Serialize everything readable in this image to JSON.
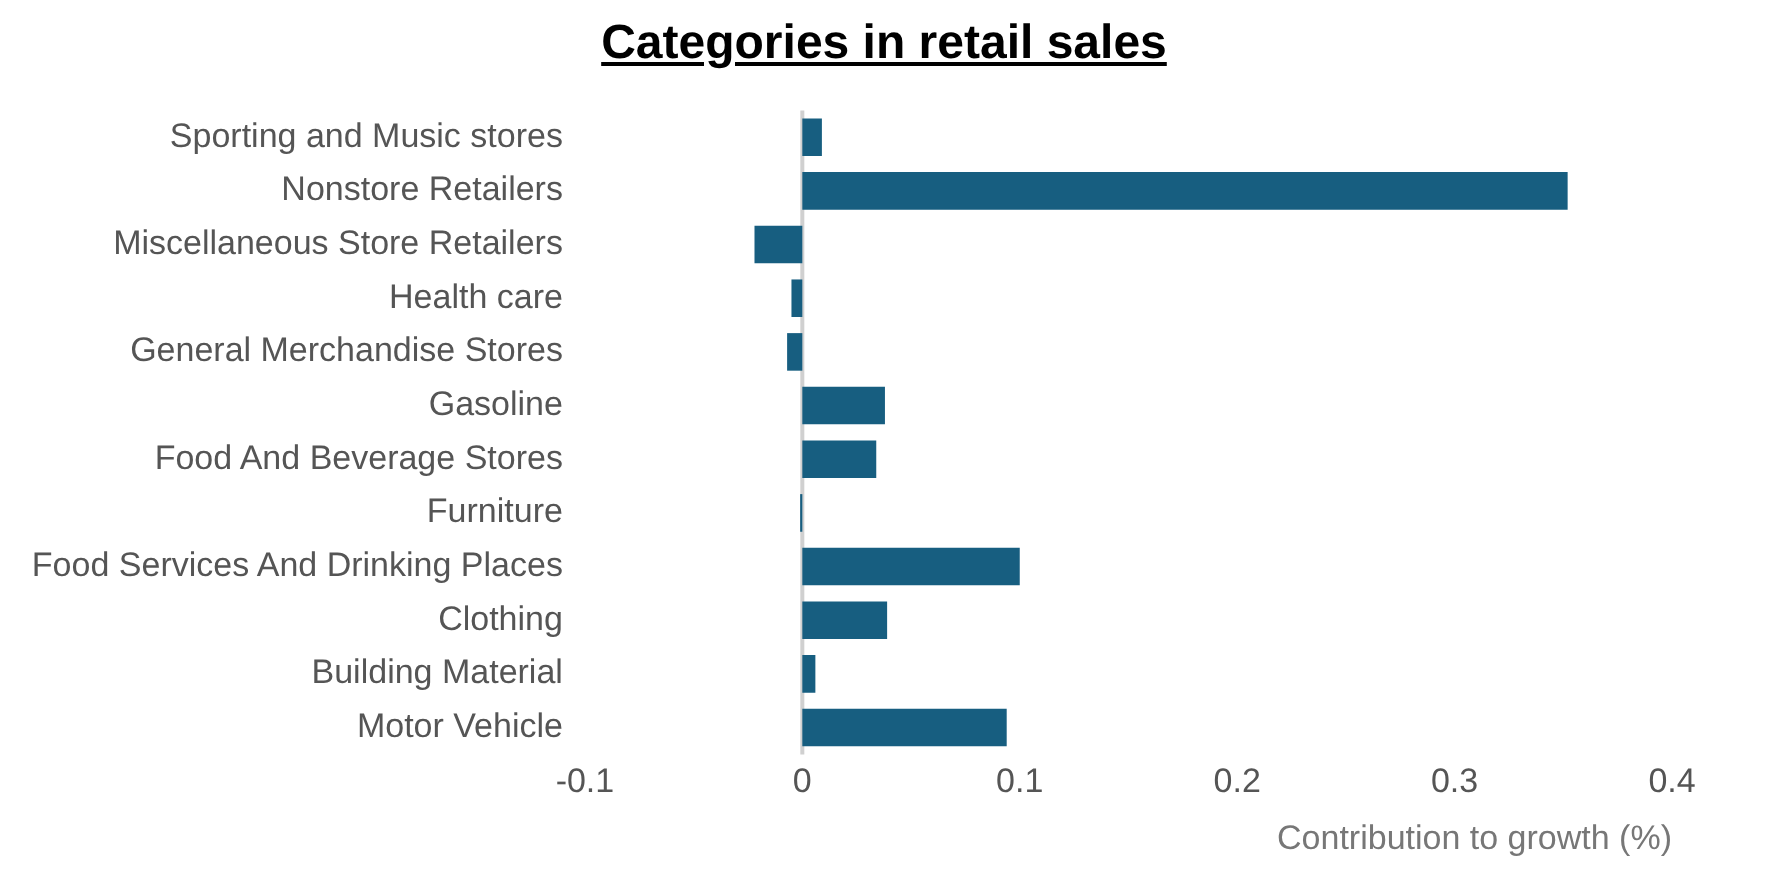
{
  "chart_data": {
    "type": "bar",
    "orientation": "horizontal",
    "title": "Categories in retail sales",
    "xlabel": "Contribution to growth (%)",
    "categories": [
      "Sporting and Music stores",
      "Nonstore Retailers",
      "Miscellaneous Store Retailers",
      "Health care",
      "General Merchandise Stores",
      "Gasoline",
      "Food And Beverage Stores",
      "Furniture",
      "Food Services And Drinking Places",
      "Clothing",
      "Building Material",
      "Motor Vehicle"
    ],
    "values": [
      0.009,
      0.352,
      -0.022,
      -0.005,
      -0.007,
      0.038,
      0.034,
      -0.001,
      0.1,
      0.039,
      0.006,
      0.094
    ],
    "color": "#175e80",
    "xlim": [
      -0.1,
      0.4
    ],
    "xticks": [
      -0.1,
      0,
      0.1,
      0.2,
      0.3,
      0.4
    ],
    "grid": false,
    "legend": false,
    "ref_lines": [
      {
        "axis": "x",
        "value": 0,
        "color": "#d0d0d0"
      }
    ]
  }
}
